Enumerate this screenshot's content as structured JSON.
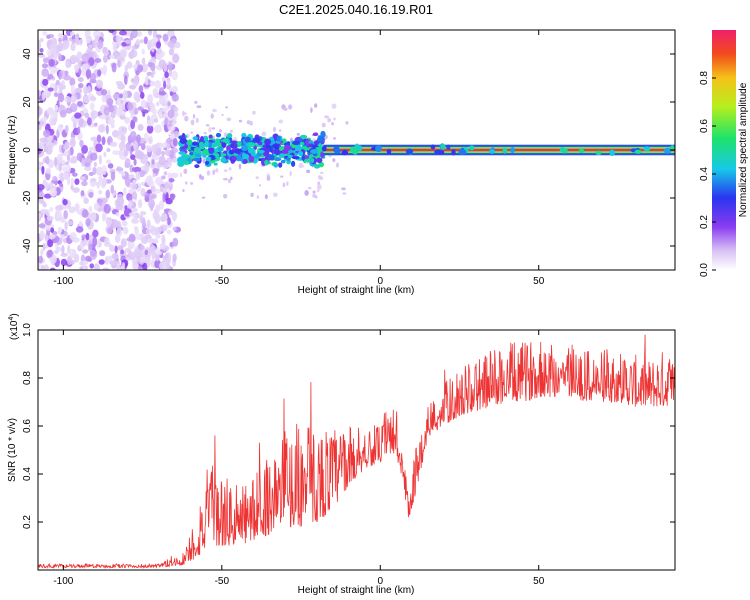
{
  "chart_data": [
    {
      "type": "heatmap",
      "title": "C2E1.2025.040.16.19.R01",
      "xlabel": "Height of straight line (km)",
      "ylabel": "Frequency (Hz)",
      "xlim": [
        -108,
        93
      ],
      "ylim": [
        -50,
        50
      ],
      "x_ticks": [
        -100,
        -50,
        0,
        50
      ],
      "y_ticks": [
        40,
        20,
        0,
        -20,
        -40
      ],
      "colorbar": {
        "label": "Normalized spectral amplitude",
        "range": [
          0,
          1
        ],
        "ticks": [
          "0.0",
          "0.2",
          "0.4",
          "0.6",
          "0.8"
        ],
        "tick_values": [
          0,
          0.2,
          0.4,
          0.6,
          0.8
        ]
      },
      "regions": [
        {
          "x_range": [
            -108,
            -64
          ],
          "freq_range": [
            -50,
            50
          ],
          "amplitude": "0.0-0.2",
          "pattern": "broadband noise"
        },
        {
          "x_range": [
            -63,
            -18
          ],
          "freq_range": [
            -7,
            7
          ],
          "amplitude": "0.2-0.5",
          "pattern": "band centered at 0 Hz"
        },
        {
          "x_range": [
            -18,
            93
          ],
          "freq_range": [
            -2,
            2
          ],
          "amplitude": "0.8-1.0",
          "pattern": "narrow line at 0 Hz"
        }
      ]
    },
    {
      "type": "line",
      "xlabel": "Height of straight line (km)",
      "ylabel": "SNR (10 * v/v)",
      "y_multiplier": "(x10",
      "y_multiplier_exp": "4",
      "xlim": [
        -108,
        93
      ],
      "ylim": [
        0,
        1.0
      ],
      "x_ticks": [
        -100,
        -50,
        0,
        50
      ],
      "y_ticks": [
        0.2,
        0.4,
        0.6,
        0.8,
        1.0
      ],
      "line_color": "#ee3333",
      "envelope": {
        "x": [
          -108,
          -70,
          -62,
          -58,
          -55,
          -50,
          -45,
          -40,
          -35,
          -30,
          -25,
          -20,
          -15,
          -10,
          -5,
          0,
          5,
          9,
          10,
          15,
          20,
          25,
          30,
          35,
          40,
          45,
          50,
          55,
          60,
          65,
          70,
          75,
          80,
          85,
          90,
          93
        ],
        "base": [
          0.01,
          0.01,
          0.02,
          0.05,
          0.08,
          0.1,
          0.1,
          0.12,
          0.15,
          0.18,
          0.18,
          0.2,
          0.25,
          0.35,
          0.42,
          0.45,
          0.48,
          0.2,
          0.25,
          0.55,
          0.6,
          0.64,
          0.66,
          0.68,
          0.7,
          0.7,
          0.72,
          0.72,
          0.72,
          0.7,
          0.7,
          0.7,
          0.68,
          0.68,
          0.68,
          0.7
        ],
        "amp": [
          0.015,
          0.015,
          0.06,
          0.2,
          0.35,
          0.3,
          0.25,
          0.28,
          0.35,
          0.4,
          0.45,
          0.4,
          0.35,
          0.25,
          0.2,
          0.15,
          0.25,
          0.1,
          0.2,
          0.15,
          0.18,
          0.2,
          0.22,
          0.25,
          0.25,
          0.25,
          0.25,
          0.25,
          0.25,
          0.22,
          0.22,
          0.22,
          0.22,
          0.2,
          0.25,
          0.2
        ]
      }
    }
  ]
}
